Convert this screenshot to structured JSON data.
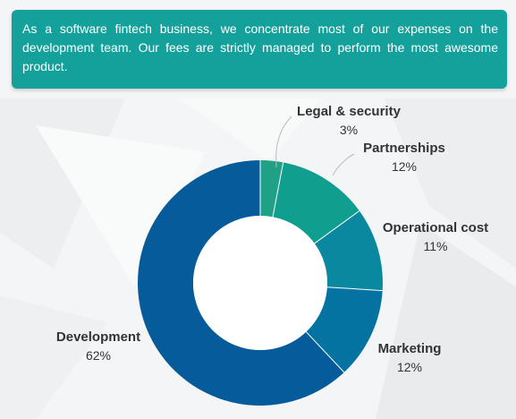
{
  "intro": {
    "text": "As a software fintech business, we concentrate most of our expenses on the development team. Our fees are strictly managed to perform the most awesome product."
  },
  "colors": {
    "banner": "#14a19b",
    "background": "#f4f5f6",
    "label": "#333333"
  },
  "chart_data": {
    "type": "pie",
    "variant": "donut",
    "title": "",
    "start_angle_deg": 0,
    "direction": "clockwise",
    "slices": [
      {
        "label": "Legal & security",
        "value": 3,
        "display": "3%",
        "color": "#20a085"
      },
      {
        "label": "Partnerships",
        "value": 12,
        "display": "12%",
        "color": "#109e8f"
      },
      {
        "label": "Operational cost",
        "value": 11,
        "display": "11%",
        "color": "#0988a0"
      },
      {
        "label": "Marketing",
        "value": 12,
        "display": "12%",
        "color": "#0473a2"
      },
      {
        "label": "Development",
        "value": 62,
        "display": "62%",
        "color": "#065c9a"
      }
    ]
  }
}
